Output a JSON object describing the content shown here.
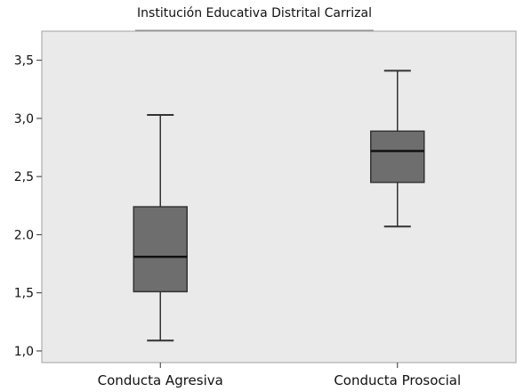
{
  "chart_data": {
    "type": "boxplot",
    "title": "Institución Educativa Distrital Carrizal",
    "xlabel": "",
    "ylabel": "",
    "ylim": [
      0.9,
      3.75
    ],
    "y_ticks": [
      1.0,
      1.5,
      2.0,
      2.5,
      3.0,
      3.5
    ],
    "y_tick_labels": [
      "1,0",
      "1,5",
      "2.0",
      "2,5",
      "3,0",
      "3,5"
    ],
    "grid": false,
    "categories": [
      "Conducta Agresiva",
      "Conducta Prosocial"
    ],
    "boxes": [
      {
        "category": "Conducta Agresiva",
        "min": 1.09,
        "q1": 1.51,
        "median": 1.81,
        "q3": 2.24,
        "max": 3.03
      },
      {
        "category": "Conducta Prosocial",
        "min": 2.07,
        "q1": 2.45,
        "median": 2.72,
        "q3": 2.89,
        "max": 3.41
      }
    ],
    "colors": {
      "background": "#eaeaea",
      "box_fill": "#6e6e6e",
      "line": "#333333",
      "frame": "#a0a0a0"
    }
  }
}
